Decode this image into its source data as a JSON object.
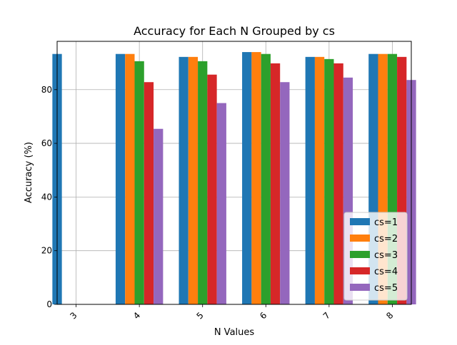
{
  "chart_data": {
    "type": "bar",
    "title": "Accuracy for Each N Grouped by cs",
    "xlabel": "N Values",
    "ylabel": "Accuracy (%)",
    "categories": [
      "3",
      "4",
      "5",
      "6",
      "7",
      "8"
    ],
    "ylim": [
      0,
      98
    ],
    "yticks": [
      0,
      20,
      40,
      60,
      80
    ],
    "grid": true,
    "legend_position": "lower-right",
    "series": [
      {
        "name": "cs=1",
        "color": "#1f77b4",
        "values": [
          93.3,
          93.3,
          92.2,
          94.0,
          92.2,
          93.3
        ]
      },
      {
        "name": "cs=2",
        "color": "#ff7f0e",
        "values": [
          null,
          93.3,
          92.2,
          94.0,
          92.2,
          93.3
        ]
      },
      {
        "name": "cs=3",
        "color": "#2ca02c",
        "values": [
          null,
          90.6,
          90.6,
          93.3,
          91.4,
          93.3
        ]
      },
      {
        "name": "cs=4",
        "color": "#d62728",
        "values": [
          null,
          82.8,
          85.6,
          89.8,
          89.8,
          92.2
        ]
      },
      {
        "name": "cs=5",
        "color": "#9467bd",
        "values": [
          null,
          65.4,
          75.0,
          82.8,
          84.5,
          83.6
        ]
      }
    ]
  }
}
